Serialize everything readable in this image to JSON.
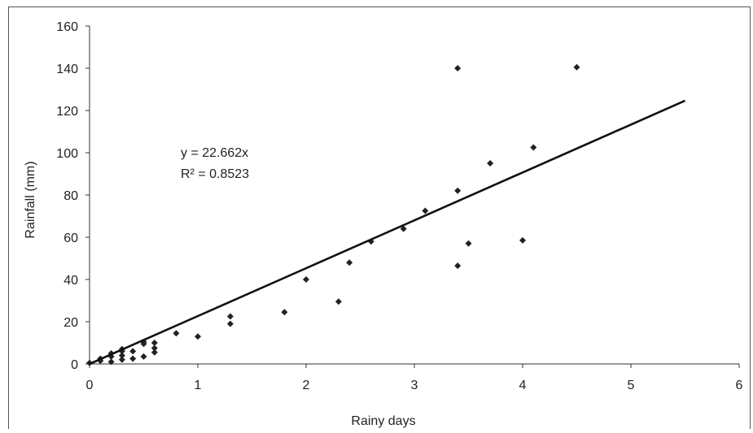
{
  "chart_data": {
    "type": "scatter",
    "title": "",
    "xlabel": "Rainy days",
    "ylabel": "Rainfall (mm)",
    "xlim": [
      0,
      6
    ],
    "ylim": [
      0,
      160
    ],
    "x_ticks": [
      0,
      1,
      2,
      3,
      4,
      5,
      6
    ],
    "y_ticks": [
      0,
      20,
      40,
      60,
      80,
      100,
      120,
      140,
      160
    ],
    "grid": false,
    "legend": "none",
    "marker_color": "#222222",
    "series": [
      {
        "points": [
          [
            0.0,
            0.5
          ],
          [
            0.1,
            1.5
          ],
          [
            0.1,
            2.5
          ],
          [
            0.2,
            1.0
          ],
          [
            0.2,
            3.5
          ],
          [
            0.2,
            5.0
          ],
          [
            0.3,
            2.0
          ],
          [
            0.3,
            4.0
          ],
          [
            0.3,
            6.0
          ],
          [
            0.3,
            7.0
          ],
          [
            0.4,
            2.5
          ],
          [
            0.4,
            6.0
          ],
          [
            0.5,
            3.5
          ],
          [
            0.5,
            9.5
          ],
          [
            0.5,
            10.5
          ],
          [
            0.6,
            5.5
          ],
          [
            0.6,
            7.5
          ],
          [
            0.6,
            10.0
          ],
          [
            0.8,
            14.5
          ],
          [
            1.0,
            13.0
          ],
          [
            1.3,
            19.0
          ],
          [
            1.3,
            22.5
          ],
          [
            1.8,
            24.5
          ],
          [
            2.0,
            40.0
          ],
          [
            2.3,
            29.5
          ],
          [
            2.4,
            48.0
          ],
          [
            2.6,
            58.0
          ],
          [
            2.9,
            64.0
          ],
          [
            3.1,
            72.5
          ],
          [
            3.4,
            46.5
          ],
          [
            3.4,
            82.0
          ],
          [
            3.4,
            140.0
          ],
          [
            3.5,
            57.0
          ],
          [
            3.7,
            95.0
          ],
          [
            4.0,
            58.5
          ],
          [
            4.1,
            102.5
          ],
          [
            4.5,
            140.5
          ]
        ]
      }
    ],
    "trendline": {
      "type": "linear",
      "slope": 22.662,
      "intercept": 0,
      "x_range": [
        0,
        5.5
      ],
      "equation": "y = 22.662x",
      "r_squared": "R² = 0.8523"
    }
  }
}
